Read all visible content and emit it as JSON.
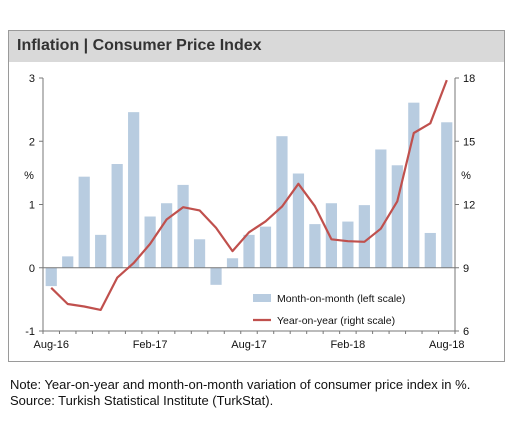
{
  "title": "Inflation | Consumer Price Index",
  "notes": [
    "Note: Year-on-year and month-on-month variation of consumer price index in %.",
    "Source: Turkish Statistical Institute (TurkStat)."
  ],
  "colors": {
    "bars": "#b8cce0",
    "line": "#c0504d",
    "title_bg": "#d9d9d9",
    "axis": "#777777"
  },
  "chart_data": {
    "type": "bar",
    "categories": [
      "Aug-16",
      "Sep-16",
      "Oct-16",
      "Nov-16",
      "Dec-16",
      "Jan-17",
      "Feb-17",
      "Mar-17",
      "Apr-17",
      "May-17",
      "Jun-17",
      "Jul-17",
      "Aug-17",
      "Sep-17",
      "Oct-17",
      "Nov-17",
      "Dec-17",
      "Jan-18",
      "Feb-18",
      "Mar-18",
      "Apr-18",
      "May-18",
      "Jun-18",
      "Jul-18",
      "Aug-18"
    ],
    "x_tick_labels": [
      "Aug-16",
      "Feb-17",
      "Aug-17",
      "Feb-18",
      "Aug-18"
    ],
    "series": [
      {
        "name": "Month-on-month (left scale)",
        "type": "bar",
        "axis": "left",
        "values": [
          -0.29,
          0.18,
          1.44,
          0.52,
          1.64,
          2.46,
          0.81,
          1.02,
          1.31,
          0.45,
          -0.27,
          0.15,
          0.52,
          0.65,
          2.08,
          1.49,
          0.69,
          1.02,
          0.73,
          0.99,
          1.87,
          1.62,
          2.61,
          0.55,
          2.3
        ]
      },
      {
        "name": "Year-on-year (right scale)",
        "type": "line",
        "axis": "right",
        "values": [
          8.05,
          7.28,
          7.16,
          7.0,
          8.53,
          9.22,
          10.13,
          11.29,
          11.87,
          11.72,
          10.9,
          9.79,
          10.68,
          11.2,
          11.9,
          12.98,
          11.92,
          10.35,
          10.26,
          10.23,
          10.85,
          12.15,
          15.39,
          15.85,
          17.9
        ]
      }
    ],
    "y_left": {
      "min": -1,
      "max": 3,
      "ticks": [
        -1,
        0,
        1,
        2,
        3
      ],
      "label": "%"
    },
    "y_right": {
      "min": 6,
      "max": 18,
      "ticks": [
        6,
        9,
        12,
        15,
        18
      ],
      "label": "%"
    },
    "legend_position": "bottom-right",
    "grid": false
  }
}
